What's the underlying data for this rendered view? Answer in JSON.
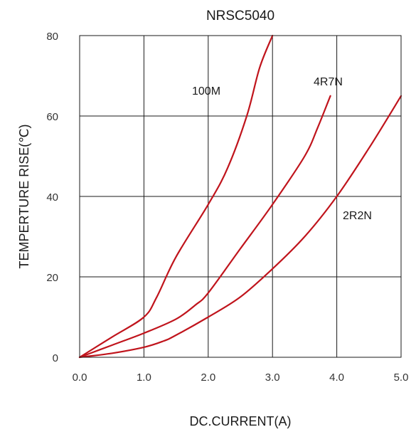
{
  "chart_data": {
    "type": "line",
    "title": "NRSC5040",
    "xlabel": "DC.CURRENT(A)",
    "ylabel": "TEMPERTURE RISE(℃)",
    "xlim": [
      0,
      5
    ],
    "ylim": [
      0,
      80
    ],
    "xticks": [
      "0.0",
      "1.0",
      "2.0",
      "3.0",
      "4.0",
      "5.0"
    ],
    "yticks": [
      "0",
      "20",
      "40",
      "60",
      "80"
    ],
    "grid": true,
    "line_color": "#c0141c",
    "series": [
      {
        "name": "100M",
        "points": [
          [
            0,
            0
          ],
          [
            0.5,
            5
          ],
          [
            1.0,
            10
          ],
          [
            1.2,
            15
          ],
          [
            1.5,
            25
          ],
          [
            2.0,
            38
          ],
          [
            2.3,
            47
          ],
          [
            2.6,
            60
          ],
          [
            2.8,
            72
          ],
          [
            3.0,
            80
          ]
        ]
      },
      {
        "name": "4R7N",
        "points": [
          [
            0,
            0
          ],
          [
            0.5,
            3
          ],
          [
            1.0,
            6
          ],
          [
            1.5,
            9.5
          ],
          [
            1.8,
            13
          ],
          [
            2.0,
            16
          ],
          [
            2.5,
            27
          ],
          [
            3.0,
            38
          ],
          [
            3.5,
            50
          ],
          [
            3.7,
            57
          ],
          [
            3.9,
            65
          ]
        ]
      },
      {
        "name": "2R2N",
        "points": [
          [
            0,
            0
          ],
          [
            0.5,
            1
          ],
          [
            1.0,
            2.5
          ],
          [
            1.3,
            4
          ],
          [
            1.5,
            5.5
          ],
          [
            2.0,
            10
          ],
          [
            2.5,
            15
          ],
          [
            3.0,
            22
          ],
          [
            3.5,
            30
          ],
          [
            4.0,
            40
          ],
          [
            4.5,
            52
          ],
          [
            5.0,
            65
          ]
        ]
      }
    ],
    "annotations": [
      "100M",
      "4R7N",
      "2R2N"
    ]
  }
}
